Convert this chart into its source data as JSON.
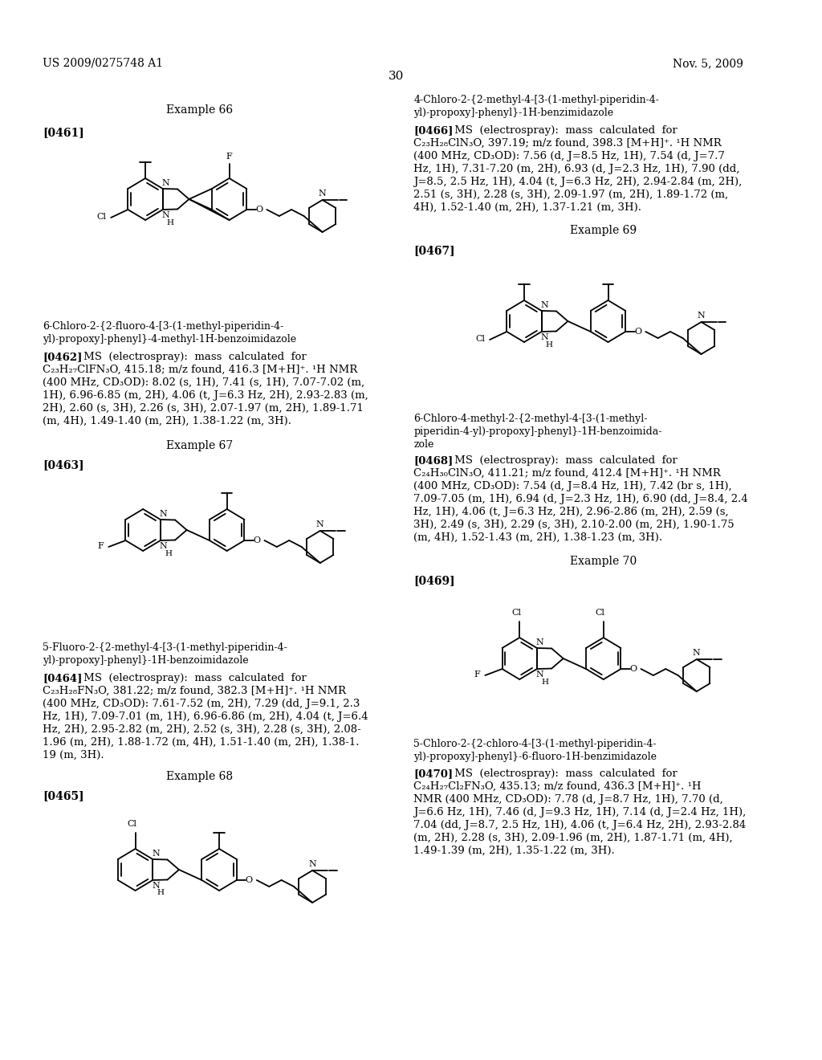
{
  "page_header_left": "US 2009/0275748 A1",
  "page_header_right": "Nov. 5, 2009",
  "page_number": "30",
  "background_color": "#ffffff",
  "text_color": "#000000"
}
